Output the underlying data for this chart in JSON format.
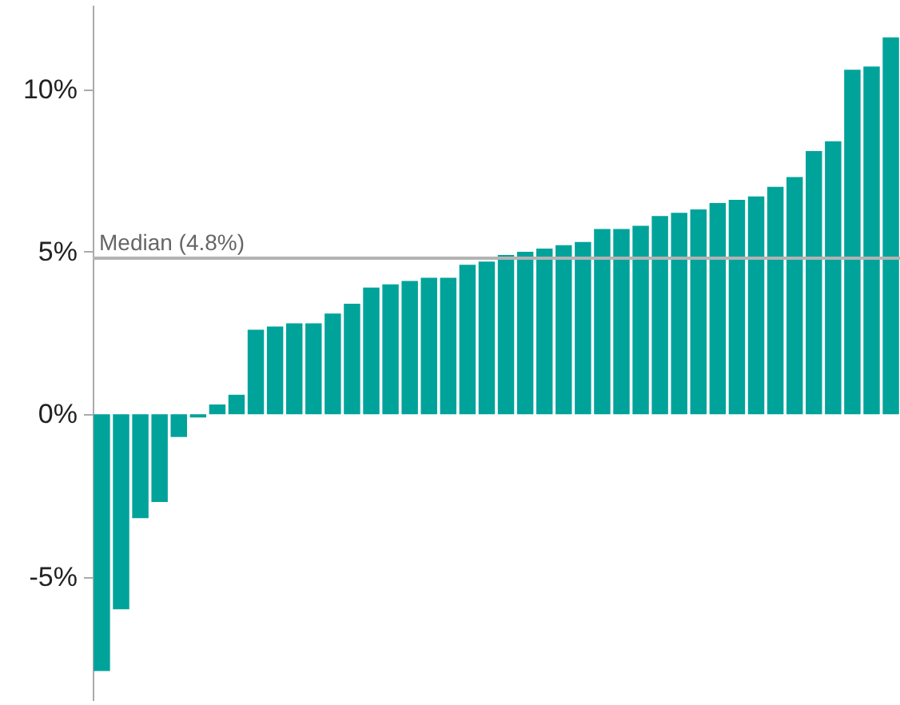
{
  "chart_data": {
    "type": "bar",
    "categories": [
      null,
      null,
      null,
      null,
      null,
      null,
      null,
      null,
      null,
      null,
      null,
      null,
      null,
      null,
      null,
      null,
      null,
      null,
      null,
      null,
      null,
      null,
      null,
      null,
      null,
      null,
      null,
      null,
      null,
      null,
      null,
      null,
      null,
      null,
      null,
      null,
      null,
      null,
      null,
      null,
      null,
      null
    ],
    "values": [
      -7.9,
      -6.0,
      -3.2,
      -2.7,
      -0.7,
      -0.1,
      0.3,
      0.6,
      2.6,
      2.7,
      2.8,
      2.8,
      3.1,
      3.4,
      3.9,
      4.0,
      4.1,
      4.2,
      4.2,
      4.6,
      4.7,
      4.9,
      5.0,
      5.1,
      5.2,
      5.3,
      5.7,
      5.7,
      5.8,
      6.1,
      6.2,
      6.3,
      6.5,
      6.6,
      6.7,
      7.0,
      7.3,
      8.1,
      8.4,
      10.6,
      10.7,
      11.6
    ],
    "color": "#00a39a",
    "ylim": [
      -8.8,
      12.6
    ],
    "yticks": [
      {
        "value": -5,
        "label": "-5%"
      },
      {
        "value": 0,
        "label": "0%"
      },
      {
        "value": 5,
        "label": "5%"
      },
      {
        "value": 10,
        "label": "10%"
      }
    ],
    "ref_lines": [
      {
        "axis": "y",
        "value": 4.8,
        "label": "Median (4.8%)",
        "color": "#b3b3b3"
      }
    ],
    "tick_labels": "y",
    "grid": false
  }
}
